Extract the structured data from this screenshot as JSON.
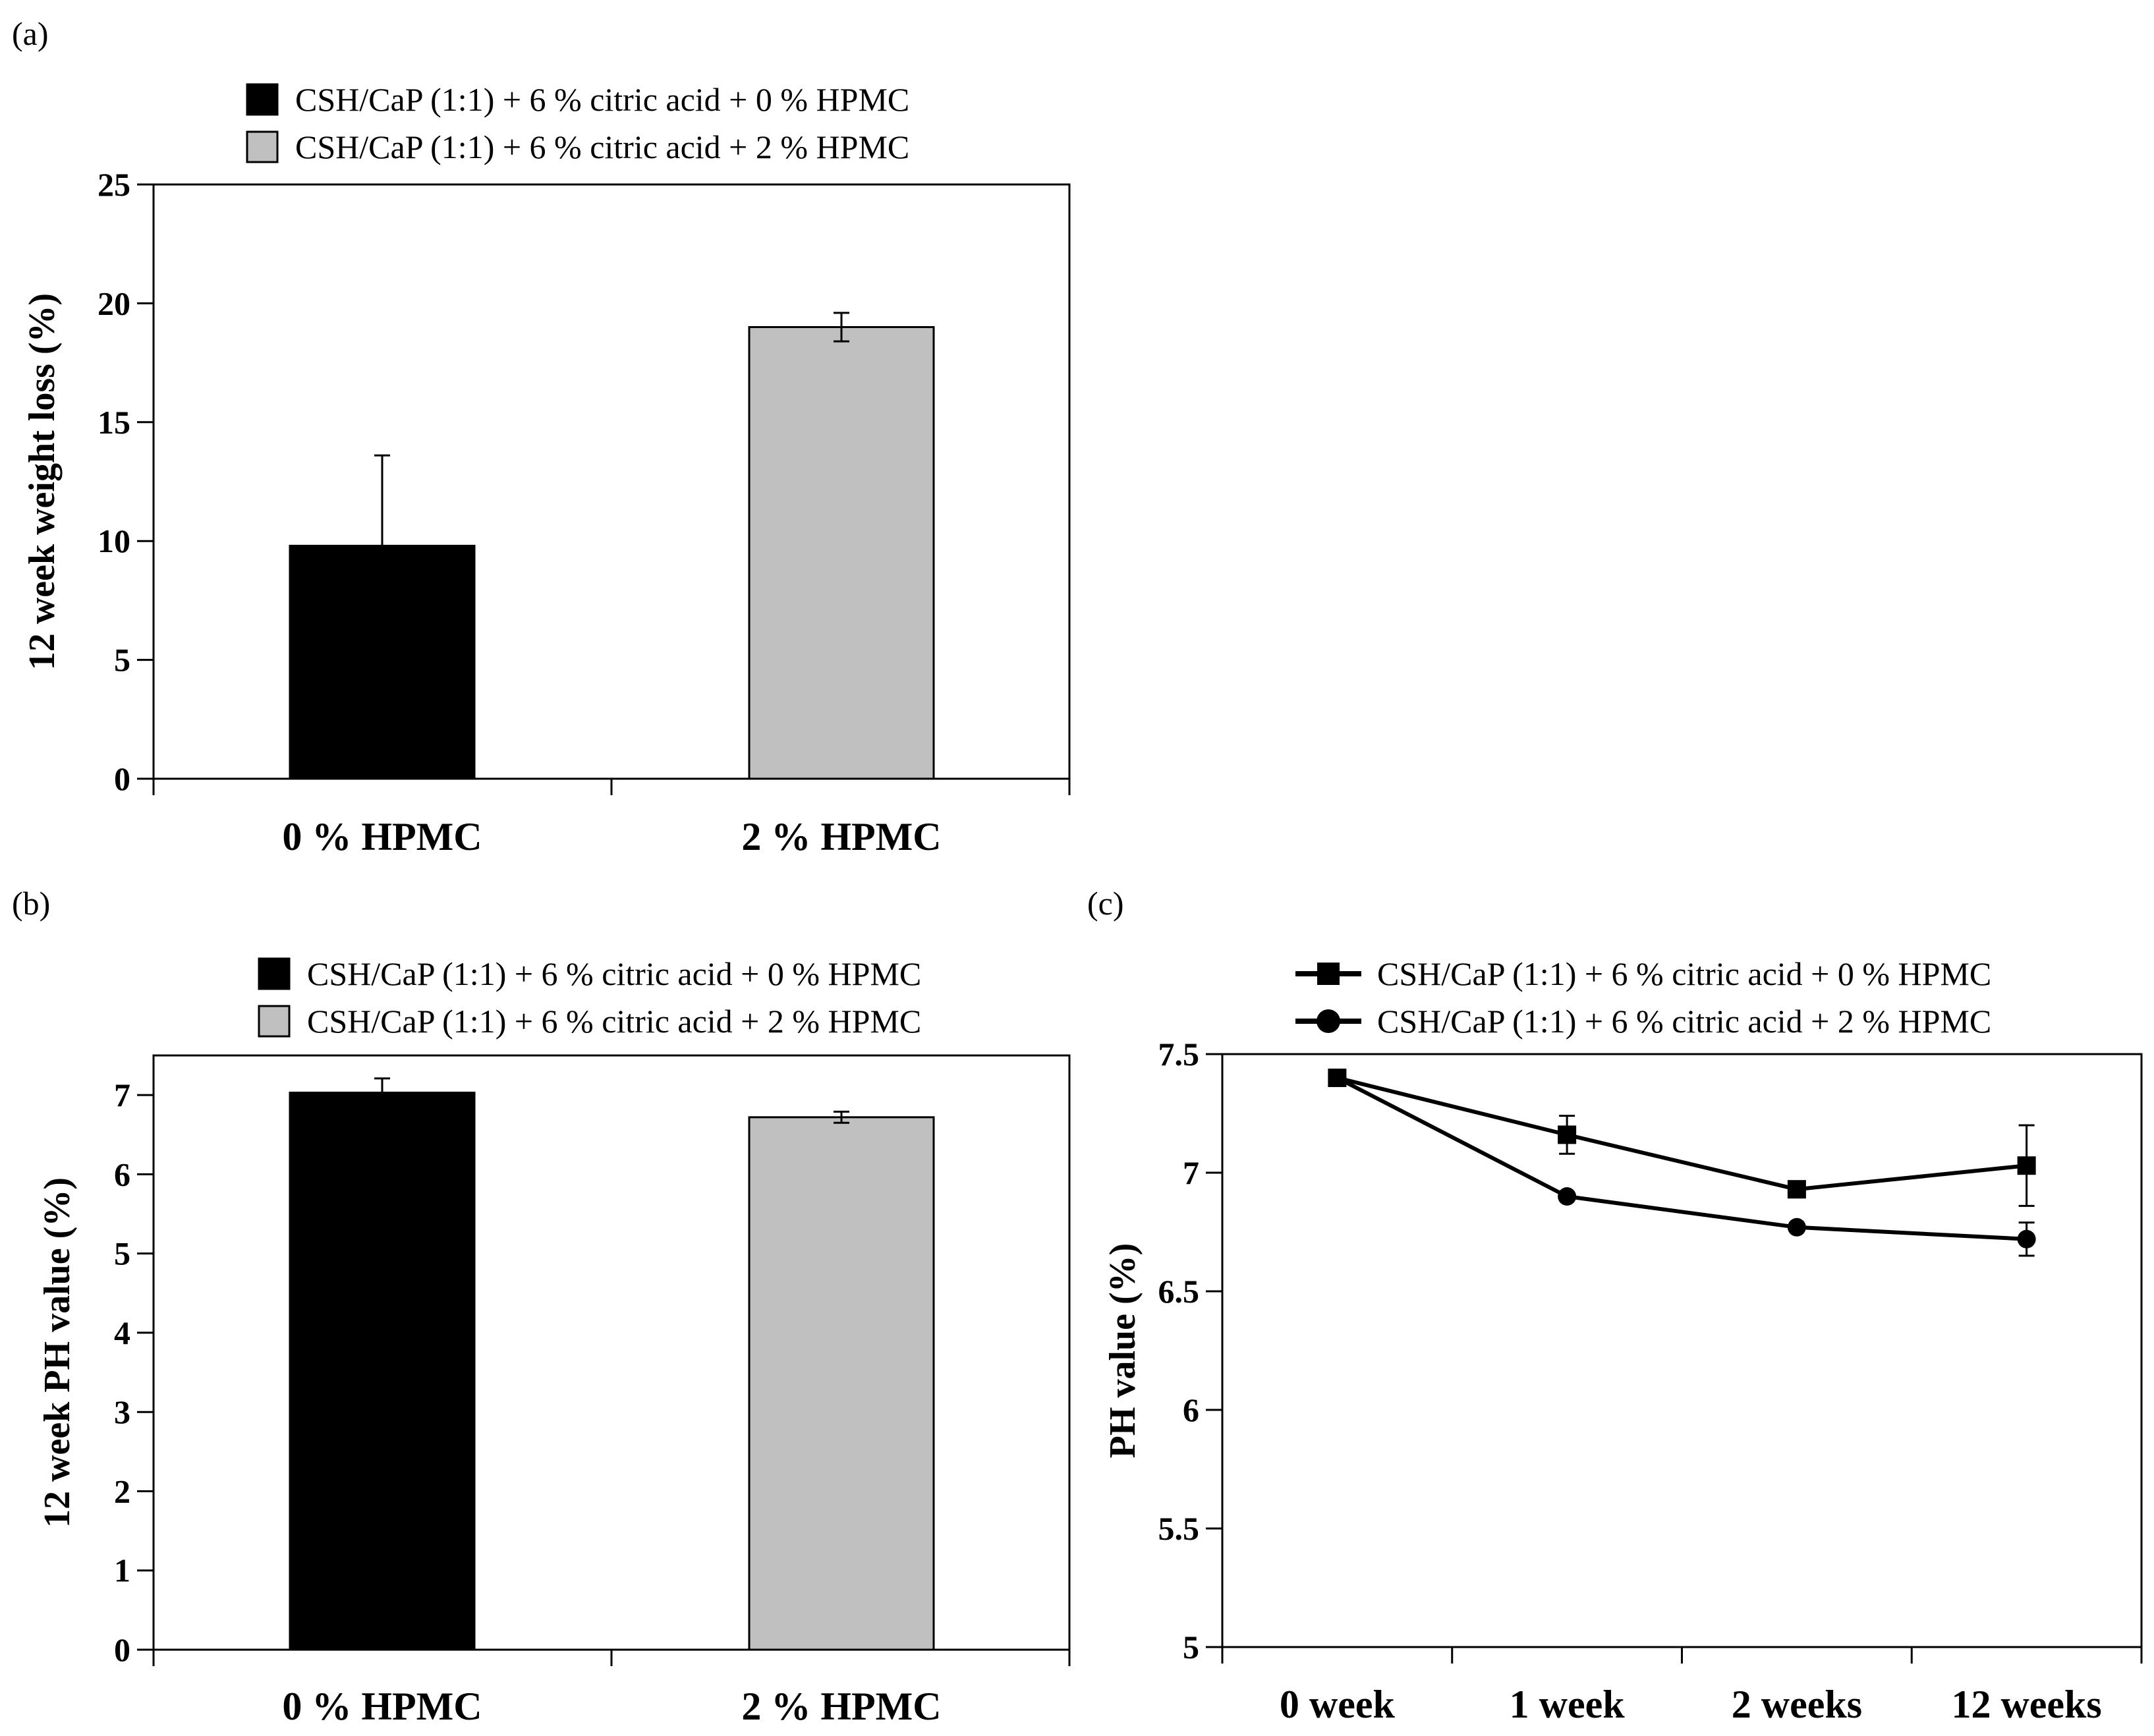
{
  "panels": [
    {
      "label": "(a)",
      "chart_data": {
        "type": "bar",
        "categories": [
          "0 % HPMC",
          "2 % HPMC"
        ],
        "series": [
          {
            "name": "CSH/CaP (1:1) + 6 % citric acid + 0 % HPMC",
            "color": "#000000"
          },
          {
            "name": "CSH/CaP (1:1) + 6 % citric acid + 2 % HPMC",
            "color": "#c0c0c0"
          }
        ],
        "values": [
          9.8,
          19.0
        ],
        "errors": [
          3.8,
          0.6
        ],
        "bar_colors": [
          "#000000",
          "#c0c0c0"
        ],
        "ylabel": "12 week weight loss (%)",
        "ylim": [
          0,
          25
        ],
        "yticks": [
          "0",
          "5",
          "10",
          "15",
          "20",
          "25"
        ],
        "legend_position": "top"
      }
    },
    {
      "label": "(b)",
      "chart_data": {
        "type": "bar",
        "categories": [
          "0 % HPMC",
          "2 % HPMC"
        ],
        "series": [
          {
            "name": "CSH/CaP (1:1) + 6 % citric acid + 0 % HPMC",
            "color": "#000000"
          },
          {
            "name": "CSH/CaP (1:1) + 6 % citric acid + 2 % HPMC",
            "color": "#c0c0c0"
          }
        ],
        "values": [
          7.03,
          6.72
        ],
        "errors": [
          0.18,
          0.07
        ],
        "bar_colors": [
          "#000000",
          "#c0c0c0"
        ],
        "ylabel": "12 week PH value (%)",
        "ylim": [
          0,
          7.5
        ],
        "yticks": [
          "0",
          "1",
          "2",
          "3",
          "4",
          "5",
          "6",
          "7"
        ],
        "legend_position": "top"
      }
    },
    {
      "label": "(c)",
      "chart_data": {
        "type": "line",
        "categories": [
          "0 week",
          "1 week",
          "2 weeks",
          "12 weeks"
        ],
        "series": [
          {
            "name": "CSH/CaP (1:1) + 6 % citric acid + 0 % HPMC",
            "marker": "square",
            "values": [
              7.4,
              7.16,
              6.93,
              7.03
            ],
            "errors": [
              0,
              0.08,
              0.02,
              0.17
            ]
          },
          {
            "name": "CSH/CaP (1:1) + 6 % citric acid + 2 % HPMC",
            "marker": "circle",
            "values": [
              7.4,
              6.9,
              6.77,
              6.72
            ],
            "errors": [
              0,
              0,
              0,
              0.07
            ]
          }
        ],
        "ylabel": "PH value (%)",
        "ylim": [
          5,
          7.5
        ],
        "yticks": [
          "5",
          "5.5",
          "6",
          "6.5",
          "7",
          "7.5"
        ],
        "legend_position": "top"
      }
    }
  ]
}
